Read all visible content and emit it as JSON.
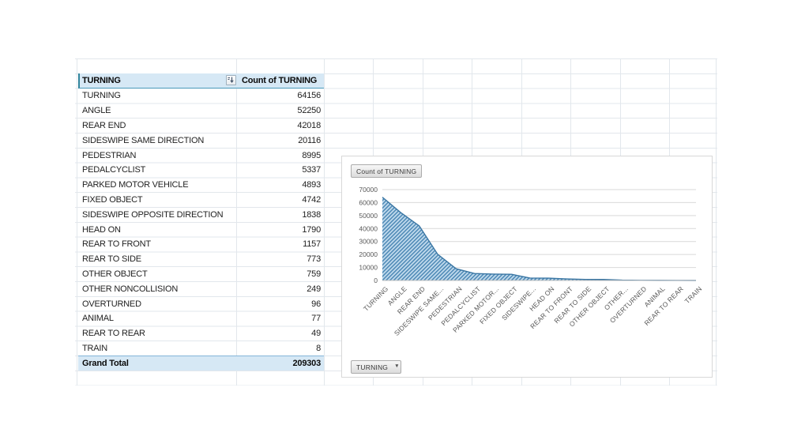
{
  "colors": {
    "pivot_header_fill": "#D6E8F5",
    "pivot_accent": "#31859C",
    "header_underline": "#4F9FBF",
    "grid_line": "#E2E7EC",
    "chart_grid": "#D9D9D9",
    "chart_axis": "#BFBFBF",
    "chart_label": "#595959",
    "area_stripe": "#4C88B5",
    "area_background": "#BFD9EC",
    "area_stroke": "#3A76A3"
  },
  "icons": {
    "header_sort_filter": "sort-descending-filter",
    "dropdown": "▼"
  },
  "table": {
    "header": {
      "category": "TURNING",
      "count": "Count of TURNING"
    },
    "rows": [
      {
        "label": "TURNING",
        "value": "64156"
      },
      {
        "label": "ANGLE",
        "value": "52250"
      },
      {
        "label": "REAR END",
        "value": "42018"
      },
      {
        "label": "SIDESWIPE SAME DIRECTION",
        "value": "20116"
      },
      {
        "label": "PEDESTRIAN",
        "value": "8995"
      },
      {
        "label": "PEDALCYCLIST",
        "value": "5337"
      },
      {
        "label": "PARKED MOTOR VEHICLE",
        "value": "4893"
      },
      {
        "label": "FIXED OBJECT",
        "value": "4742"
      },
      {
        "label": "SIDESWIPE OPPOSITE DIRECTION",
        "value": "1838"
      },
      {
        "label": "HEAD ON",
        "value": "1790"
      },
      {
        "label": "REAR TO FRONT",
        "value": "1157"
      },
      {
        "label": "REAR TO SIDE",
        "value": "773"
      },
      {
        "label": "OTHER OBJECT",
        "value": "759"
      },
      {
        "label": "OTHER NONCOLLISION",
        "value": "249"
      },
      {
        "label": "OVERTURNED",
        "value": "96"
      },
      {
        "label": "ANIMAL",
        "value": "77"
      },
      {
        "label": "REAR TO REAR",
        "value": "49"
      },
      {
        "label": "TRAIN",
        "value": "8"
      }
    ],
    "grand_total": {
      "label": "Grand Total",
      "value": "209303"
    }
  },
  "chart": {
    "value_field_label": "Count of TURNING",
    "axis_field_label": "TURNING",
    "y_ticks": [
      "0",
      "10000",
      "20000",
      "30000",
      "40000",
      "50000",
      "60000",
      "70000"
    ],
    "categories": [
      "TURNING",
      "ANGLE",
      "REAR END",
      "SIDESWIPE SAME...",
      "PEDESTRIAN",
      "PEDALCYCLIST",
      "PARKED MOTOR...",
      "FIXED OBJECT",
      "SIDESWIPE...",
      "HEAD ON",
      "REAR TO FRONT",
      "REAR TO SIDE",
      "OTHER OBJECT",
      "OTHER...",
      "OVERTURNED",
      "ANIMAL",
      "REAR TO REAR",
      "TRAIN"
    ],
    "values": [
      64156,
      52250,
      42018,
      20116,
      8995,
      5337,
      4893,
      4742,
      1838,
      1790,
      1157,
      773,
      759,
      249,
      96,
      77,
      49,
      8
    ]
  },
  "chart_data": {
    "type": "area",
    "title": "",
    "series": [
      {
        "name": "Count of TURNING",
        "values": [
          64156,
          52250,
          42018,
          20116,
          8995,
          5337,
          4893,
          4742,
          1838,
          1790,
          1157,
          773,
          759,
          249,
          96,
          77,
          49,
          8
        ]
      }
    ],
    "categories": [
      "TURNING",
      "ANGLE",
      "REAR END",
      "SIDESWIPE SAME...",
      "PEDESTRIAN",
      "PEDALCYCLIST",
      "PARKED MOTOR...",
      "FIXED OBJECT",
      "SIDESWIPE...",
      "HEAD ON",
      "REAR TO FRONT",
      "REAR TO SIDE",
      "OTHER OBJECT",
      "OTHER...",
      "OVERTURNED",
      "ANIMAL",
      "REAR TO REAR",
      "TRAIN"
    ],
    "xlabel": "",
    "ylabel": "",
    "ylim": [
      0,
      70000
    ],
    "y_tick_step": 10000,
    "grid": "horizontal",
    "legend": "none",
    "fill_style": "diagonal-hatch"
  }
}
